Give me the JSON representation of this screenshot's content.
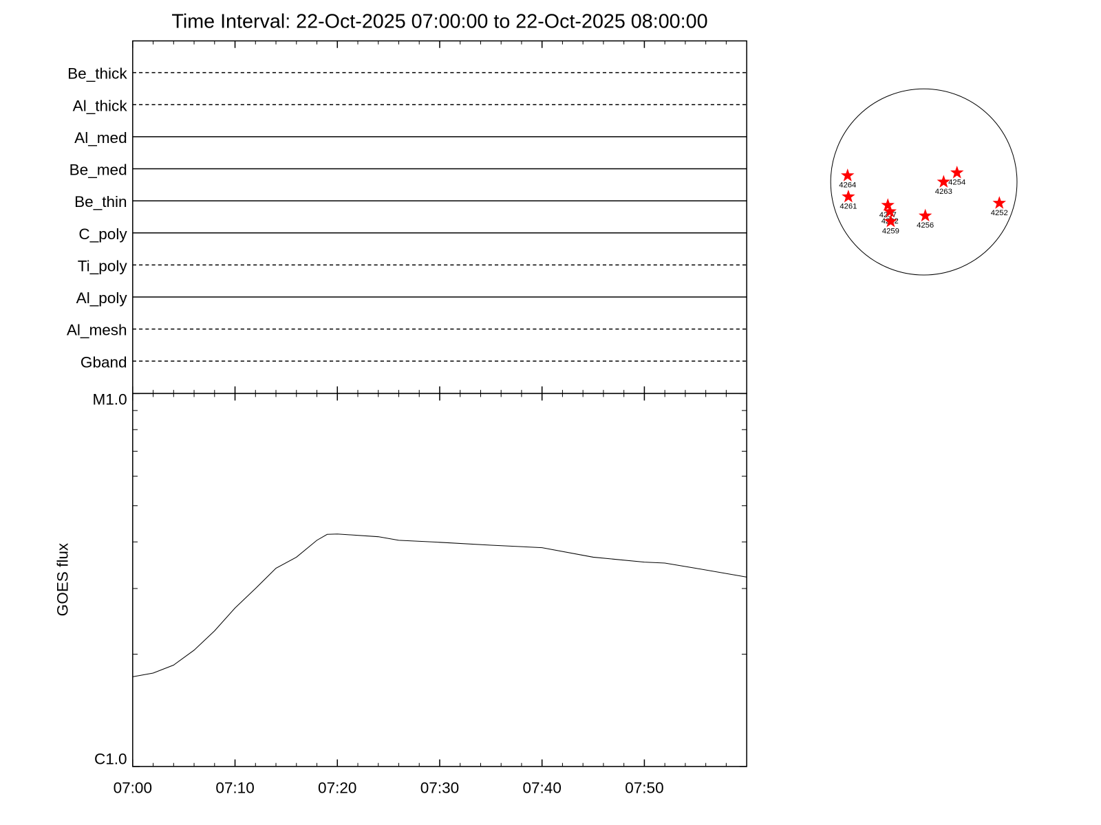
{
  "chart_data": [
    {
      "type": "channels",
      "title": "Time Interval: 22-Oct-2025 07:00:00 to 22-Oct-2025 08:00:00",
      "channels": [
        {
          "name": "Be_thick",
          "style": "dashed"
        },
        {
          "name": "Al_thick",
          "style": "dashed"
        },
        {
          "name": "Al_med",
          "style": "solid"
        },
        {
          "name": "Be_med",
          "style": "solid"
        },
        {
          "name": "Be_thin",
          "style": "solid"
        },
        {
          "name": "C_poly",
          "style": "solid"
        },
        {
          "name": "Ti_poly",
          "style": "dashed"
        },
        {
          "name": "Al_poly",
          "style": "solid"
        },
        {
          "name": "Al_mesh",
          "style": "dashed"
        },
        {
          "name": "Gband",
          "style": "dashed"
        }
      ]
    },
    {
      "type": "line",
      "ylabel": "GOES flux",
      "log_y": true,
      "x": [
        0,
        2,
        4,
        6,
        8,
        10,
        12,
        14,
        16,
        18,
        19,
        20,
        24,
        26,
        30,
        35,
        40,
        45,
        50,
        52,
        55,
        60
      ],
      "series": [
        {
          "color": "#000000",
          "values": [
            1.74e-06,
            1.78e-06,
            1.87e-06,
            2.05e-06,
            2.31e-06,
            2.66e-06,
            3e-06,
            3.4e-06,
            3.64e-06,
            4.04e-06,
            4.19e-06,
            4.2e-06,
            4.13e-06,
            4.04e-06,
            3.99e-06,
            3.92e-06,
            3.86e-06,
            3.64e-06,
            3.53e-06,
            3.51e-06,
            3.4e-06,
            3.22e-06
          ]
        }
      ],
      "xlim": [
        0,
        60
      ],
      "xticks": [
        {
          "value": 0,
          "label": "07:00"
        },
        {
          "value": 10,
          "label": "07:10"
        },
        {
          "value": 20,
          "label": "07:20"
        },
        {
          "value": 30,
          "label": "07:30"
        },
        {
          "value": 40,
          "label": "07:40"
        },
        {
          "value": 50,
          "label": "07:50"
        }
      ],
      "xminor_ticks": [
        2,
        4,
        6,
        8,
        12,
        14,
        16,
        18,
        22,
        24,
        26,
        28,
        32,
        34,
        36,
        38,
        42,
        44,
        46,
        48,
        52,
        54,
        56,
        58
      ],
      "ylim": [
        1e-06,
        1e-05
      ],
      "yticks": [
        {
          "value": 1e-06,
          "label": "C1.0"
        },
        {
          "value": 1e-05,
          "label": "M1.0"
        }
      ],
      "yminor_ticks": [
        2e-06,
        3e-06,
        4e-06,
        5e-06,
        6e-06,
        7e-06,
        8e-06,
        9e-06
      ]
    },
    {
      "type": "map",
      "xlim": [
        -970,
        970
      ],
      "ylim": [
        -970,
        970
      ],
      "color": "#ff0000",
      "regions": [
        {
          "label": "4264",
          "x": -794,
          "y": 66
        },
        {
          "label": "4261",
          "x": -786,
          "y": -154
        },
        {
          "label": "4257",
          "x": -375,
          "y": -243
        },
        {
          "label": "4262",
          "x": -353,
          "y": -309
        },
        {
          "label": "4259",
          "x": -345,
          "y": -412
        },
        {
          "label": "4256",
          "x": 15,
          "y": -353
        },
        {
          "label": "4263",
          "x": 206,
          "y": 0
        },
        {
          "label": "4254",
          "x": 345,
          "y": 96
        },
        {
          "label": "4252",
          "x": 786,
          "y": -221
        }
      ]
    }
  ]
}
